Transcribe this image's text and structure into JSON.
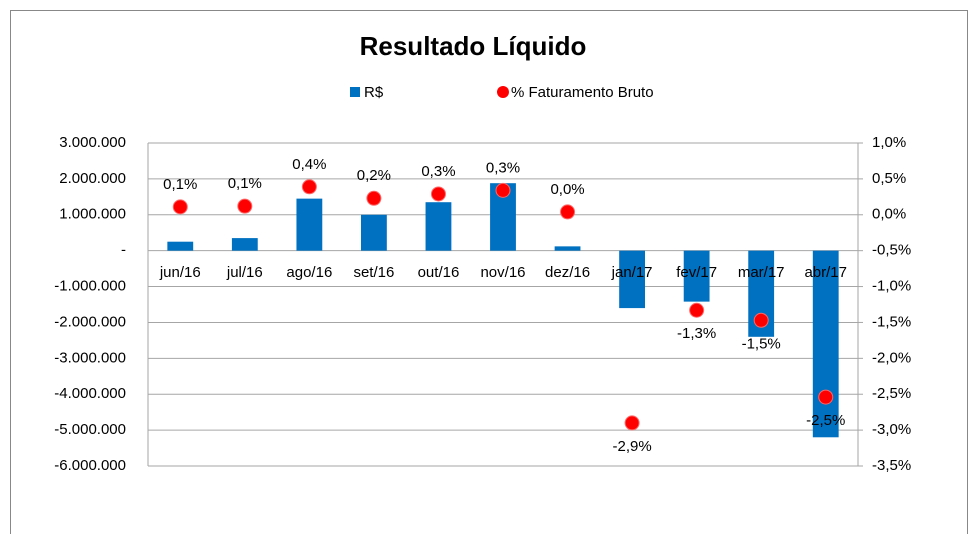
{
  "chart_data": {
    "type": "bar",
    "title": "Resultado Líquido",
    "categories": [
      "jun/16",
      "jul/16",
      "ago/16",
      "set/16",
      "out/16",
      "nov/16",
      "dez/16",
      "jan/17",
      "fev/17",
      "mar/17",
      "abr/17"
    ],
    "series": [
      {
        "name": "R$",
        "type": "bar",
        "color": "#0070c0",
        "values": [
          250000,
          350000,
          1450000,
          1000000,
          1350000,
          1880000,
          120000,
          -1600000,
          -1420000,
          -2400000,
          -5200000
        ]
      },
      {
        "name": "% Faturamento Bruto",
        "type": "scatter",
        "axis": "y2",
        "color": "#ff0000",
        "values": [
          0.11,
          0.12,
          0.39,
          0.23,
          0.29,
          0.34,
          0.04,
          -2.9,
          -1.33,
          -1.47,
          -2.54
        ],
        "value_labels": [
          "0,1%",
          "0,1%",
          "0,4%",
          "0,2%",
          "0,3%",
          "0,3%",
          "0,0%",
          "-2,9%",
          "-1,3%",
          "-1,5%",
          "-2,5%"
        ]
      }
    ],
    "ylim": [
      -6000000,
      3000000
    ],
    "yticks": [
      {
        "value": 3000000,
        "label": "3.000.000"
      },
      {
        "value": 2000000,
        "label": "2.000.000"
      },
      {
        "value": 1000000,
        "label": "1.000.000"
      },
      {
        "value": 0,
        "label": "-"
      },
      {
        "value": -1000000,
        "label": "-1.000.000"
      },
      {
        "value": -2000000,
        "label": "-2.000.000"
      },
      {
        "value": -3000000,
        "label": "-3.000.000"
      },
      {
        "value": -4000000,
        "label": "-4.000.000"
      },
      {
        "value": -5000000,
        "label": "-5.000.000"
      },
      {
        "value": -6000000,
        "label": "-6.000.000"
      }
    ],
    "y2lim": [
      -3.5,
      1.0
    ],
    "y2ticks": [
      {
        "value": 1.0,
        "label": "1,0%"
      },
      {
        "value": 0.5,
        "label": "0,5%"
      },
      {
        "value": 0.0,
        "label": "0,0%"
      },
      {
        "value": -0.5,
        "label": "-0,5%"
      },
      {
        "value": -1.0,
        "label": "-1,0%"
      },
      {
        "value": -1.5,
        "label": "-1,5%"
      },
      {
        "value": -2.0,
        "label": "-2,0%"
      },
      {
        "value": -2.5,
        "label": "-2,5%"
      },
      {
        "value": -3.0,
        "label": "-3,0%"
      },
      {
        "value": -3.5,
        "label": "-3,5%"
      }
    ],
    "grid": true,
    "legend": "top"
  }
}
